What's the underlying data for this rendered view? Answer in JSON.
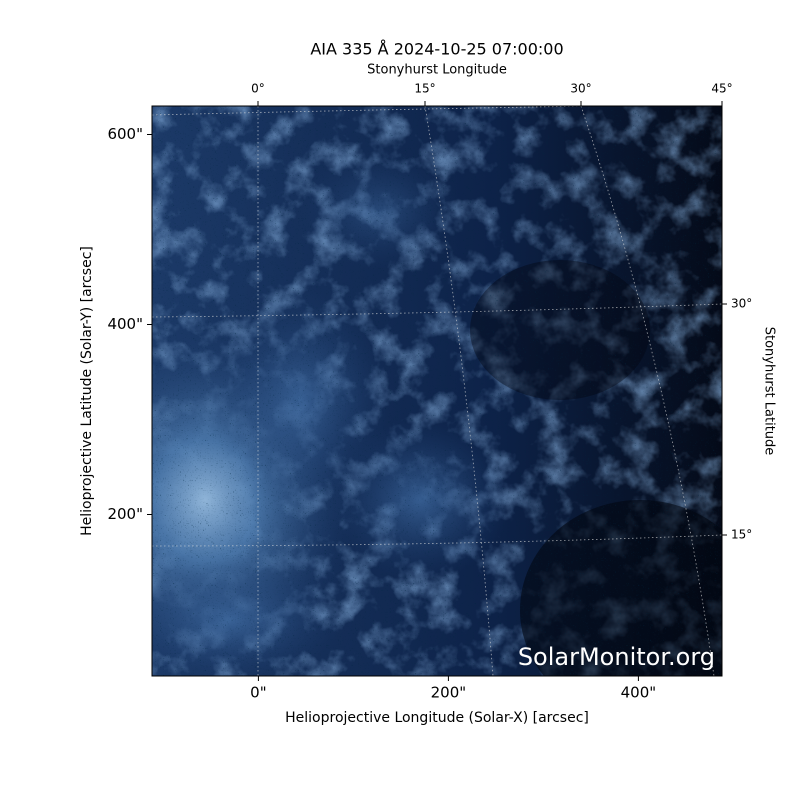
{
  "chart_data": {
    "type": "image",
    "title": "AIA 335 Å 2024-10-25 07:00:00",
    "xlabel": "Helioprojective Longitude (Solar-X) [arcsec]",
    "ylabel": "Helioprojective Latitude (Solar-Y) [arcsec]",
    "xlim": [
      -112,
      488
    ],
    "ylim": [
      30,
      630
    ],
    "xticks": [
      {
        "value": 0,
        "label": "0\""
      },
      {
        "value": 200,
        "label": "200\""
      },
      {
        "value": 400,
        "label": "400\""
      }
    ],
    "yticks": [
      {
        "value": 200,
        "label": "200\""
      },
      {
        "value": 400,
        "label": "400\""
      },
      {
        "value": 600,
        "label": "600\""
      }
    ],
    "top_axis": {
      "label": "Stonyhurst Longitude",
      "ticks": [
        "0°",
        "15°",
        "30°",
        "45°"
      ]
    },
    "right_axis": {
      "label": "Stonyhurst Latitude",
      "ticks": [
        "30°",
        "15°"
      ]
    },
    "watermark": "SolarMonitor.org"
  }
}
